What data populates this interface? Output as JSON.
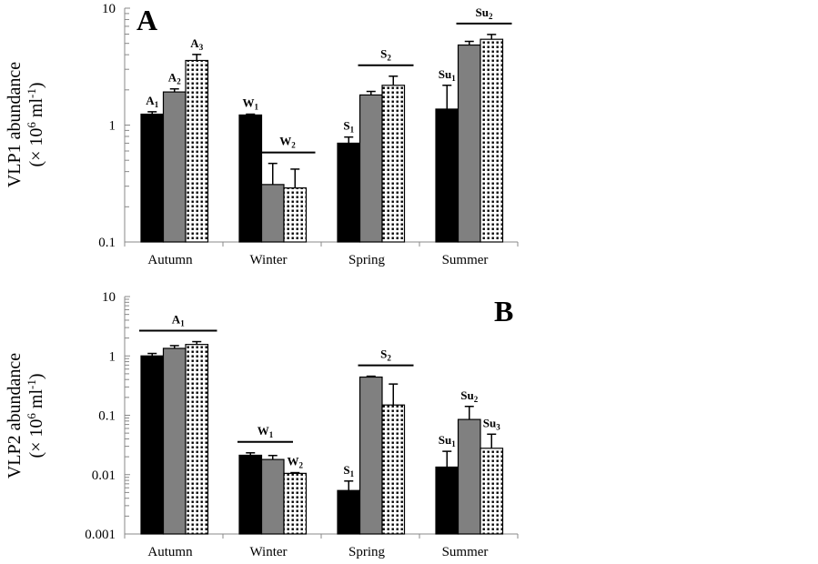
{
  "chart_data": [
    {
      "type": "bar",
      "panel": "A",
      "title": "",
      "ylabel_line1": "VLP1 abundance",
      "ylabel_line2": "(× 10",
      "ylabel_sup6": "6",
      "ylabel_unit": " ml",
      "ylabel_supneg1": "-1",
      "ylabel_close": ")",
      "xlabel": "",
      "yscale": "log",
      "ylim": [
        0.1,
        10
      ],
      "yticks": [
        "10",
        "1",
        "0.1"
      ],
      "ytick_values": [
        10,
        1,
        0.1
      ],
      "categories": [
        "Autumn",
        "Winter",
        "Spring",
        "Summer"
      ],
      "series": [
        {
          "name": "series-1",
          "fill": "#000000",
          "pattern": "solid",
          "values": [
            1.24,
            1.22,
            0.7,
            1.37
          ],
          "error_upper": [
            1.3,
            1.24,
            0.79,
            2.19
          ]
        },
        {
          "name": "series-2",
          "fill": "#808080",
          "pattern": "solid",
          "values": [
            1.92,
            0.31,
            1.81,
            4.84
          ],
          "error_upper": [
            2.04,
            0.47,
            1.94,
            5.2
          ]
        },
        {
          "name": "series-3",
          "fill": "#ffffff",
          "pattern": "dotted",
          "values": [
            3.57,
            0.29,
            2.19,
            5.42
          ],
          "error_upper": [
            4.02,
            0.42,
            2.62,
            5.96
          ]
        }
      ],
      "annotations": [
        {
          "main": "A",
          "sub": "1",
          "category": 0,
          "bars": [
            0
          ],
          "line": false
        },
        {
          "main": "A",
          "sub": "2",
          "category": 0,
          "bars": [
            1
          ],
          "line": false
        },
        {
          "main": "A",
          "sub": "3",
          "category": 0,
          "bars": [
            2
          ],
          "line": false
        },
        {
          "main": "W",
          "sub": "1",
          "category": 1,
          "bars": [
            0
          ],
          "line": false
        },
        {
          "main": "W",
          "sub": "2",
          "category": 1,
          "bars": [
            1,
            2
          ],
          "line": true
        },
        {
          "main": "S",
          "sub": "1",
          "category": 2,
          "bars": [
            0
          ],
          "line": false
        },
        {
          "main": "S",
          "sub": "2",
          "category": 2,
          "bars": [
            1,
            2
          ],
          "line": true
        },
        {
          "main": "Su",
          "sub": "1",
          "category": 3,
          "bars": [
            0
          ],
          "line": false
        },
        {
          "main": "Su",
          "sub": "2",
          "category": 3,
          "bars": [
            1,
            2
          ],
          "line": true
        }
      ],
      "grid": false,
      "legend": "none"
    },
    {
      "type": "bar",
      "panel": "B",
      "title": "",
      "ylabel_line1": "VLP2 abundance",
      "ylabel_line2": "(× 10",
      "ylabel_sup6": "6",
      "ylabel_unit": " ml",
      "ylabel_supneg1": "-1",
      "ylabel_close": ")",
      "xlabel": "",
      "yscale": "log",
      "ylim": [
        0.001,
        10
      ],
      "yticks": [
        "10",
        "1",
        "0.1",
        "0.01",
        "0.001"
      ],
      "ytick_values": [
        10,
        1,
        0.1,
        0.01,
        0.001
      ],
      "categories": [
        "Autumn",
        "Winter",
        "Spring",
        "Summer"
      ],
      "series": [
        {
          "name": "series-1",
          "fill": "#000000",
          "pattern": "solid",
          "values": [
            1.0,
            0.0212,
            0.0054,
            0.0134
          ],
          "error_upper": [
            1.1,
            0.0233,
            0.0078,
            0.0247
          ]
        },
        {
          "name": "series-2",
          "fill": "#808080",
          "pattern": "solid",
          "values": [
            1.34,
            0.018,
            0.44,
            0.085
          ],
          "error_upper": [
            1.49,
            0.021,
            0.455,
            0.141
          ]
        },
        {
          "name": "series-3",
          "fill": "#ffffff",
          "pattern": "dotted",
          "values": [
            1.56,
            0.0105,
            0.149,
            0.0278
          ],
          "error_upper": [
            1.74,
            0.0108,
            0.336,
            0.048
          ]
        }
      ],
      "annotations": [
        {
          "main": "A",
          "sub": "1",
          "category": 0,
          "bars": [
            0,
            1,
            2
          ],
          "line": true
        },
        {
          "main": "W",
          "sub": "1",
          "category": 1,
          "bars": [
            0,
            1
          ],
          "line": true
        },
        {
          "main": "W",
          "sub": "2",
          "category": 1,
          "bars": [
            2
          ],
          "line": false
        },
        {
          "main": "S",
          "sub": "1",
          "category": 2,
          "bars": [
            0
          ],
          "line": false
        },
        {
          "main": "S",
          "sub": "2",
          "category": 2,
          "bars": [
            1,
            2
          ],
          "line": true
        },
        {
          "main": "Su",
          "sub": "1",
          "category": 3,
          "bars": [
            0
          ],
          "line": false
        },
        {
          "main": "Su",
          "sub": "2",
          "category": 3,
          "bars": [
            1
          ],
          "line": false
        },
        {
          "main": "Su",
          "sub": "3",
          "category": 3,
          "bars": [
            2
          ],
          "line": false
        }
      ],
      "grid": false,
      "legend": "none"
    }
  ]
}
